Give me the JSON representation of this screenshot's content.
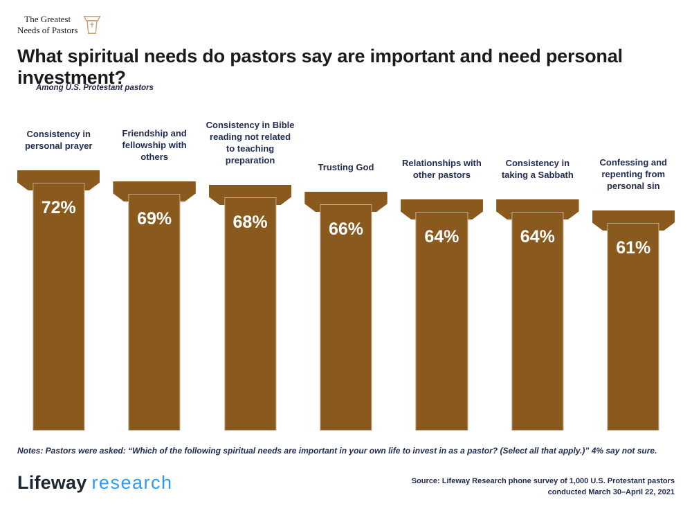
{
  "logo": {
    "text_line1": "The Greatest",
    "text_line2": "Needs of Pastors",
    "icon": "pulpit-icon"
  },
  "header": {
    "title": "What spiritual needs do pastors say are important and need personal investment?",
    "subtitle": "Among U.S. Protestant pastors"
  },
  "chart_data": {
    "type": "bar",
    "orientation": "vertical",
    "bar_style": "pulpit-column",
    "categories": [
      "Consistency in personal prayer",
      "Friendship and fellowship with others",
      "Consistency in Bible reading not related to teaching preparation",
      "Trusting God",
      "Relationships with other pastors",
      "Consistency in taking a Sabbath",
      "Confessing and repenting from personal sin"
    ],
    "values": [
      72,
      69,
      68,
      66,
      64,
      64,
      61
    ],
    "value_suffix": "%",
    "ylim": [
      0,
      100
    ],
    "grid": false,
    "axes_shown": false,
    "data_labels": "inside-top-white-bold"
  },
  "notes": "Notes: Pastors were asked: “Which of the following spiritual needs are important in your own life to invest in as a pastor? (Select all that apply.)” 4% say not sure.",
  "footer": {
    "brand_primary": "Lifeway",
    "brand_secondary": "research",
    "source_line1": "Source: Lifeway Research phone survey of 1,000 U.S. Protestant pastors",
    "source_line2": "conducted March 30–April 22, 2021"
  },
  "colors": {
    "bar_brown": "#8a591d",
    "bar_outline": "rgba(255,255,255,0.5)",
    "navy_text": "#232b52",
    "title_text": "#1b1b1d",
    "brand_navy": "#1c2733",
    "brand_blue": "#2e9bf3",
    "logo_tan": "#c8a272",
    "value_text": "#ffffff"
  }
}
